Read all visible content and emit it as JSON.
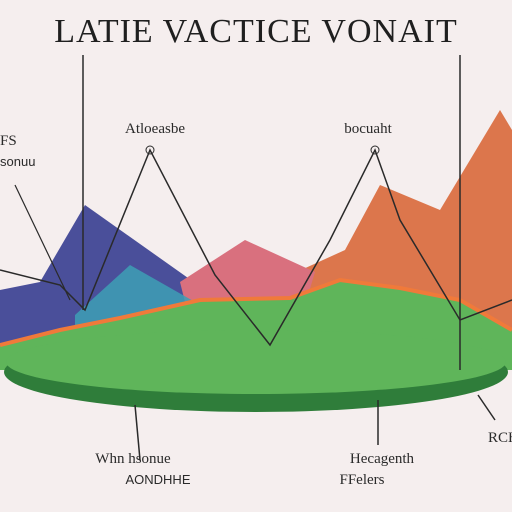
{
  "title": "LATIE VACTICE VONAIT",
  "labels": {
    "top_left_a": "FS",
    "top_left_b": "sonuu",
    "top_center": "Atloeasbe",
    "top_right": "bocuaht",
    "bottom_left_a": "Whn hsonue",
    "bottom_left_b": "AONDHHE",
    "bottom_center_a": "Hecagenth",
    "bottom_center_b": "FFelers",
    "bottom_right": "RCH"
  }
}
